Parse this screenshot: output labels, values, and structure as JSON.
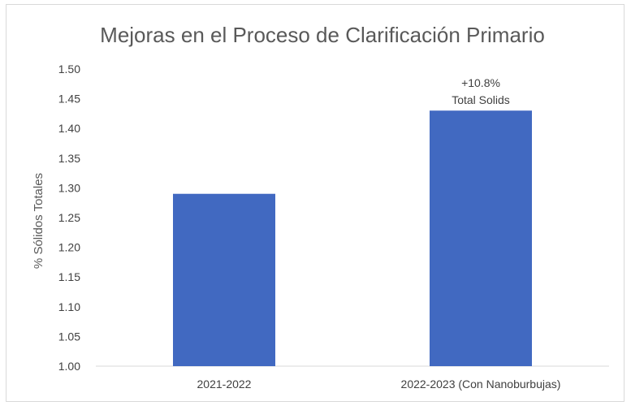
{
  "chart_data": {
    "type": "bar",
    "title": "Mejoras en el Proceso de Clarificación Primario",
    "xlabel": "",
    "ylabel": "% Sólidos Totales",
    "categories": [
      "2021-2022",
      "2022-2023 (Con Nanoburbujas)"
    ],
    "values": [
      1.29,
      1.43
    ],
    "ylim": [
      1.0,
      1.5
    ],
    "yticks": [
      "1.00",
      "1.05",
      "1.10",
      "1.15",
      "1.20",
      "1.25",
      "1.30",
      "1.35",
      "1.40",
      "1.45",
      "1.50"
    ],
    "bar_color": "#4169c1",
    "grid": false,
    "annotations": [
      {
        "category": "2022-2023 (Con Nanoburbujas)",
        "lines": [
          "+10.8%",
          "Total Solids"
        ]
      }
    ]
  }
}
